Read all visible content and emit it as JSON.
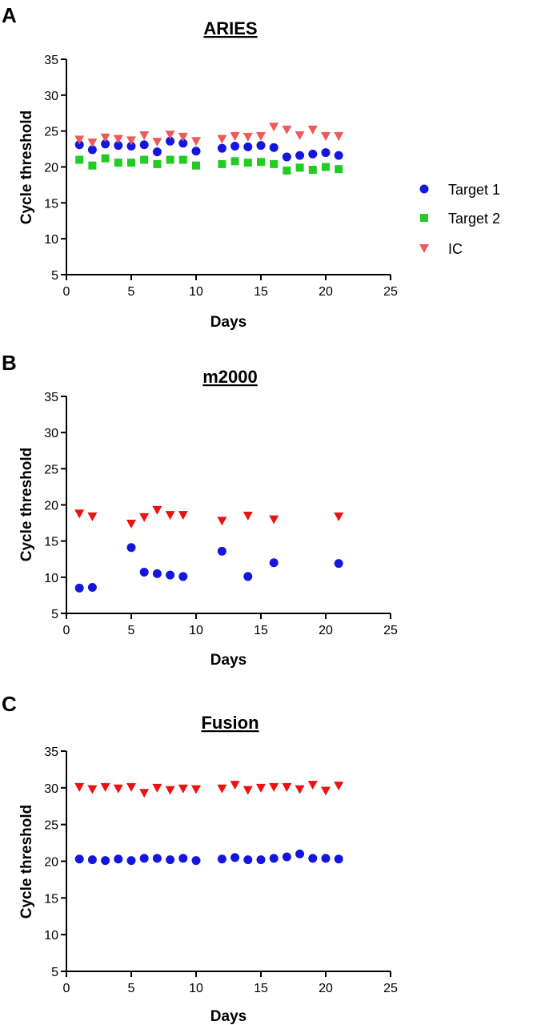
{
  "chart_data": [
    {
      "panel": "A",
      "type": "scatter",
      "title": "ARIES",
      "xlabel": "Days",
      "ylabel": "Cycle threshold",
      "xlim": [
        0,
        25
      ],
      "ylim": [
        5,
        35
      ],
      "xticks": [
        0,
        5,
        10,
        15,
        20,
        25
      ],
      "yticks": [
        5,
        10,
        15,
        20,
        25,
        30,
        35
      ],
      "legend": "right",
      "series": [
        {
          "name": "Target 1",
          "marker": "circle",
          "color": "#1515e0",
          "x": [
            1,
            2,
            3,
            4,
            5,
            6,
            7,
            8,
            9,
            10,
            12,
            13,
            14,
            15,
            16,
            17,
            18,
            19,
            20,
            21
          ],
          "y": [
            23.1,
            22.4,
            23.2,
            23.0,
            22.9,
            23.1,
            22.1,
            23.6,
            23.3,
            22.2,
            22.6,
            22.9,
            22.8,
            23.0,
            22.7,
            21.4,
            21.6,
            21.8,
            22.0,
            21.6
          ]
        },
        {
          "name": "Target 2",
          "marker": "square",
          "color": "#22cc22",
          "x": [
            1,
            2,
            3,
            4,
            5,
            6,
            7,
            8,
            9,
            10,
            12,
            13,
            14,
            15,
            16,
            17,
            18,
            19,
            20,
            21
          ],
          "y": [
            21.0,
            20.2,
            21.2,
            20.6,
            20.6,
            21.0,
            20.4,
            21.0,
            21.0,
            20.2,
            20.4,
            20.8,
            20.6,
            20.7,
            20.4,
            19.5,
            19.9,
            19.6,
            20.0,
            19.7
          ]
        },
        {
          "name": "IC",
          "marker": "triangle-down",
          "color": "#ee5a5a",
          "x": [
            1,
            2,
            3,
            4,
            5,
            6,
            7,
            8,
            9,
            10,
            12,
            13,
            14,
            15,
            16,
            17,
            18,
            19,
            20,
            21
          ],
          "y": [
            23.8,
            23.4,
            24.1,
            23.9,
            23.7,
            24.4,
            23.5,
            24.5,
            24.2,
            23.6,
            23.9,
            24.3,
            24.2,
            24.3,
            25.6,
            25.2,
            24.4,
            25.2,
            24.3,
            24.3
          ]
        }
      ]
    },
    {
      "panel": "B",
      "type": "scatter",
      "title": "m2000",
      "xlabel": "Days",
      "ylabel": "Cycle threshold",
      "xlim": [
        0,
        25
      ],
      "ylim": [
        5,
        35
      ],
      "xticks": [
        0,
        5,
        10,
        15,
        20,
        25
      ],
      "yticks": [
        5,
        10,
        15,
        20,
        25,
        30,
        35
      ],
      "series": [
        {
          "marker": "circle",
          "color": "#1515e0",
          "x": [
            1,
            2,
            5,
            6,
            7,
            8,
            9,
            12,
            14,
            16,
            21
          ],
          "y": [
            8.5,
            8.6,
            14.1,
            10.7,
            10.5,
            10.3,
            10.1,
            13.6,
            10.1,
            12.0,
            11.9
          ]
        },
        {
          "marker": "triangle-down",
          "color": "#ee1111",
          "x": [
            1,
            2,
            5,
            6,
            7,
            8,
            9,
            12,
            14,
            16,
            21
          ],
          "y": [
            18.8,
            18.4,
            17.4,
            18.3,
            19.3,
            18.6,
            18.6,
            17.8,
            18.5,
            18.0,
            18.4
          ]
        }
      ]
    },
    {
      "panel": "C",
      "type": "scatter",
      "title": "Fusion",
      "xlabel": "Days",
      "ylabel": "Cycle threshold",
      "xlim": [
        0,
        25
      ],
      "ylim": [
        5,
        35
      ],
      "xticks": [
        0,
        5,
        10,
        15,
        20,
        25
      ],
      "yticks": [
        5,
        10,
        15,
        20,
        25,
        30,
        35
      ],
      "series": [
        {
          "marker": "circle",
          "color": "#1515e0",
          "x": [
            1,
            2,
            3,
            4,
            5,
            6,
            7,
            8,
            9,
            10,
            12,
            13,
            14,
            15,
            16,
            17,
            18,
            19,
            20,
            21
          ],
          "y": [
            20.3,
            20.2,
            20.1,
            20.3,
            20.1,
            20.4,
            20.4,
            20.2,
            20.4,
            20.1,
            20.3,
            20.5,
            20.2,
            20.2,
            20.4,
            20.6,
            21.0,
            20.4,
            20.4,
            20.3
          ]
        },
        {
          "marker": "triangle-down",
          "color": "#ee1111",
          "x": [
            1,
            2,
            3,
            4,
            5,
            6,
            7,
            8,
            9,
            10,
            12,
            13,
            14,
            15,
            16,
            17,
            18,
            19,
            20,
            21
          ],
          "y": [
            30.1,
            29.8,
            30.1,
            29.9,
            30.1,
            29.3,
            30.0,
            29.7,
            29.9,
            29.8,
            29.9,
            30.4,
            29.7,
            30.0,
            30.1,
            30.1,
            29.8,
            30.4,
            29.6,
            30.3
          ]
        }
      ]
    }
  ]
}
